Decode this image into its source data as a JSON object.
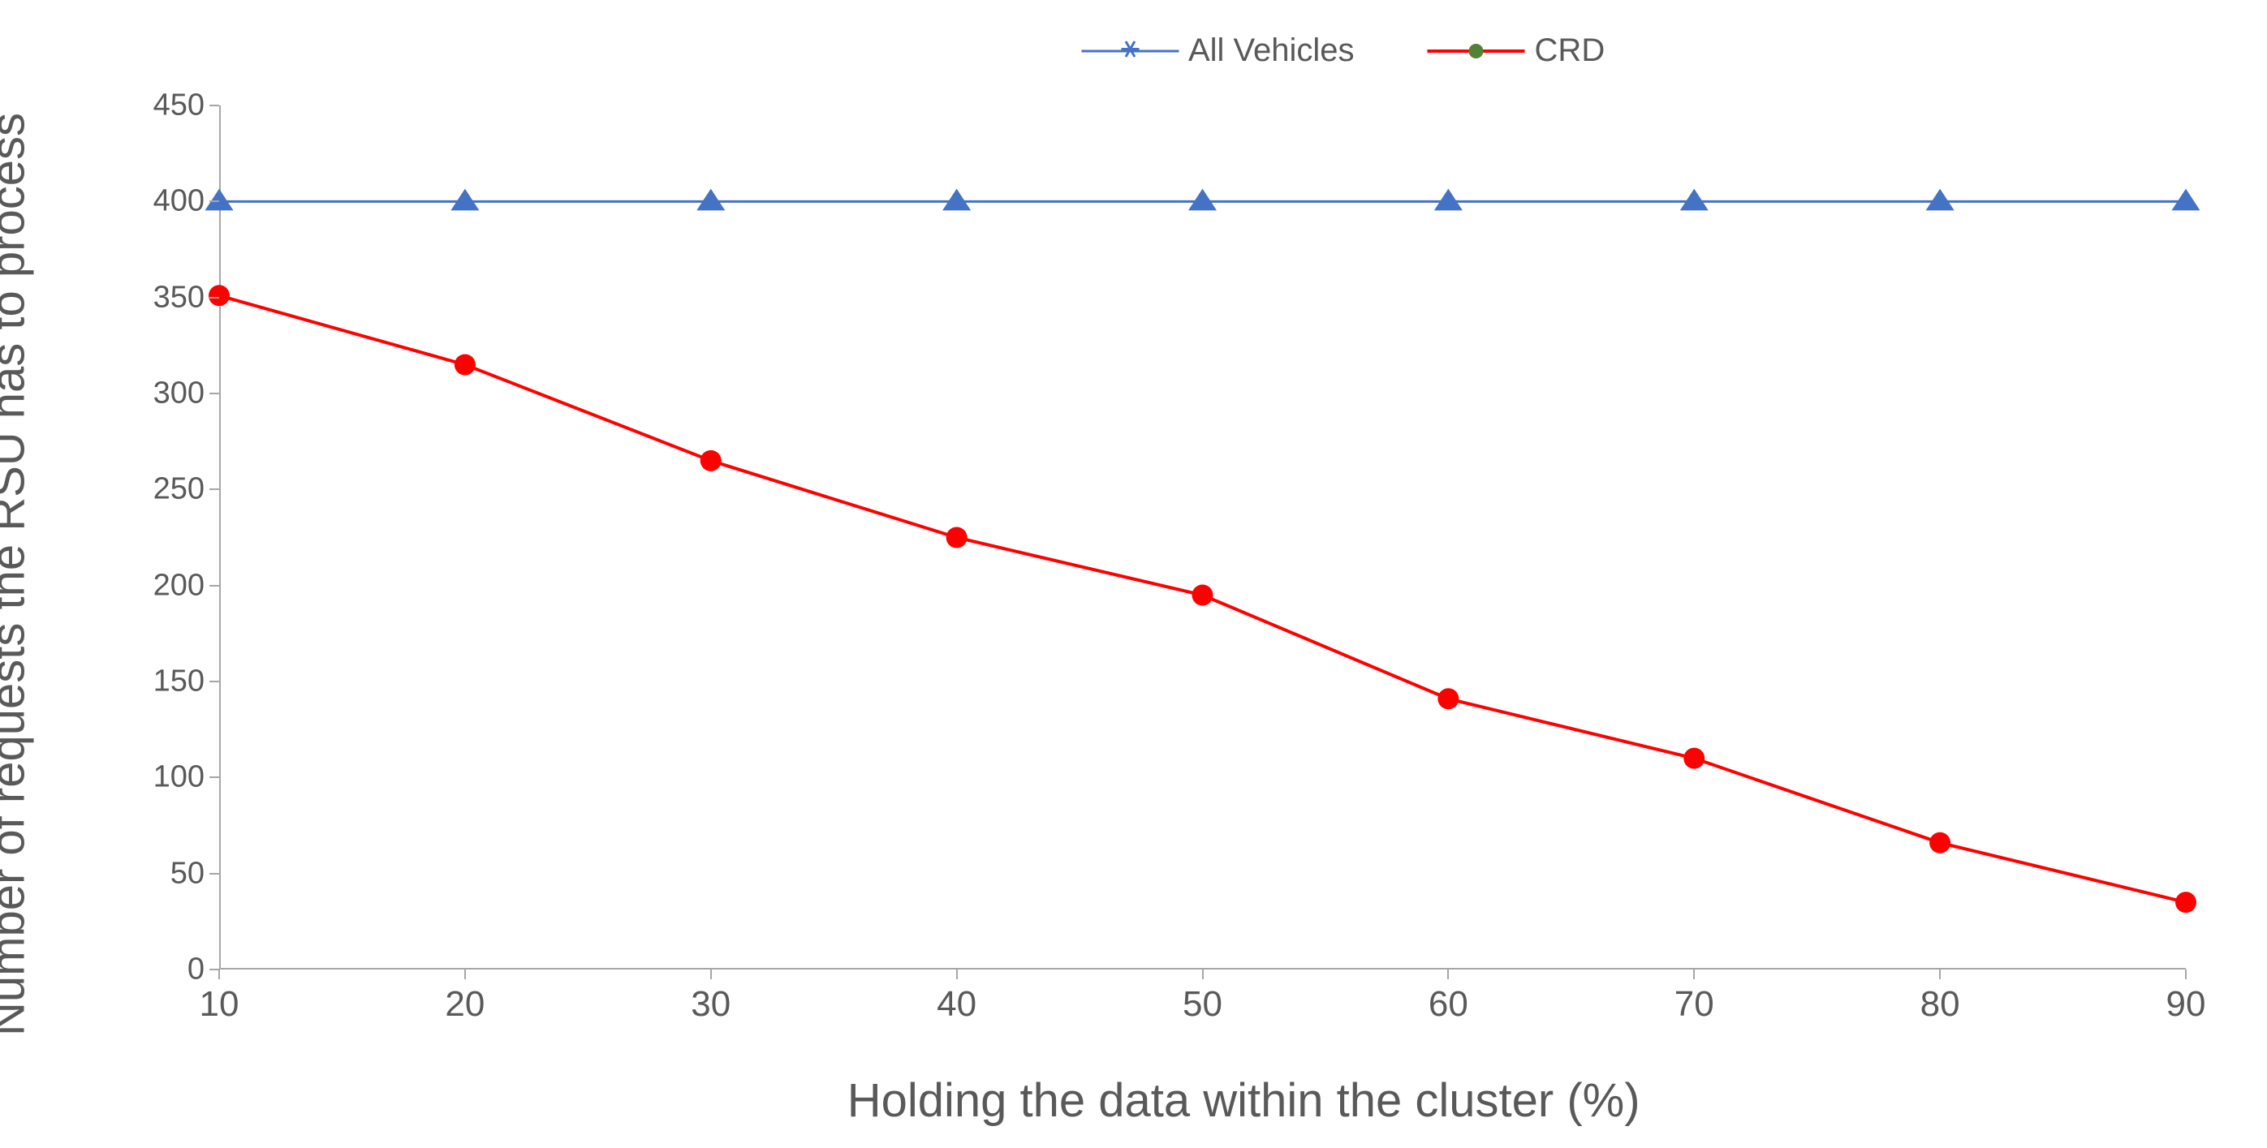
{
  "chart": {
    "type": "line",
    "background_color": "#ffffff",
    "plot_border_color": "#a6a6a6",
    "tick_color": "#a6a6a6",
    "text_color": "#595959",
    "x_axis": {
      "title": "Holding the data within the cluster (%)",
      "title_fontsize": 58,
      "ticks": [
        10,
        20,
        30,
        40,
        50,
        60,
        70,
        80,
        90
      ],
      "tick_fontsize": 44,
      "xlim": [
        10,
        90
      ]
    },
    "y_axis": {
      "title": "Number of requests the RSU has to process",
      "title_fontsize": 58,
      "ticks": [
        0,
        50,
        100,
        150,
        200,
        250,
        300,
        350,
        400,
        450
      ],
      "tick_fontsize": 38,
      "ylim": [
        0,
        450
      ]
    },
    "legend": {
      "position": "top",
      "fontsize": 40,
      "items": [
        {
          "label": "All Vehicles",
          "series_key": "all_vehicles"
        },
        {
          "label": "CRD",
          "series_key": "crd"
        }
      ]
    },
    "series": {
      "all_vehicles": {
        "label": "All Vehicles",
        "color": "#4472c4",
        "line_width": 3,
        "marker": "triangle",
        "marker_size": 28,
        "legend_marker": "asterisk",
        "x": [
          10,
          20,
          30,
          40,
          50,
          60,
          70,
          80,
          90
        ],
        "y": [
          400,
          400,
          400,
          400,
          400,
          400,
          400,
          400,
          400
        ]
      },
      "crd": {
        "label": "CRD",
        "color": "#ff0000",
        "line_width": 4,
        "marker": "circle",
        "marker_size": 26,
        "legend_marker": "circle",
        "legend_marker_color": "#548235",
        "x": [
          10,
          20,
          30,
          40,
          50,
          60,
          70,
          80,
          90
        ],
        "y": [
          351,
          315,
          265,
          225,
          195,
          141,
          110,
          66,
          35
        ]
      }
    }
  }
}
